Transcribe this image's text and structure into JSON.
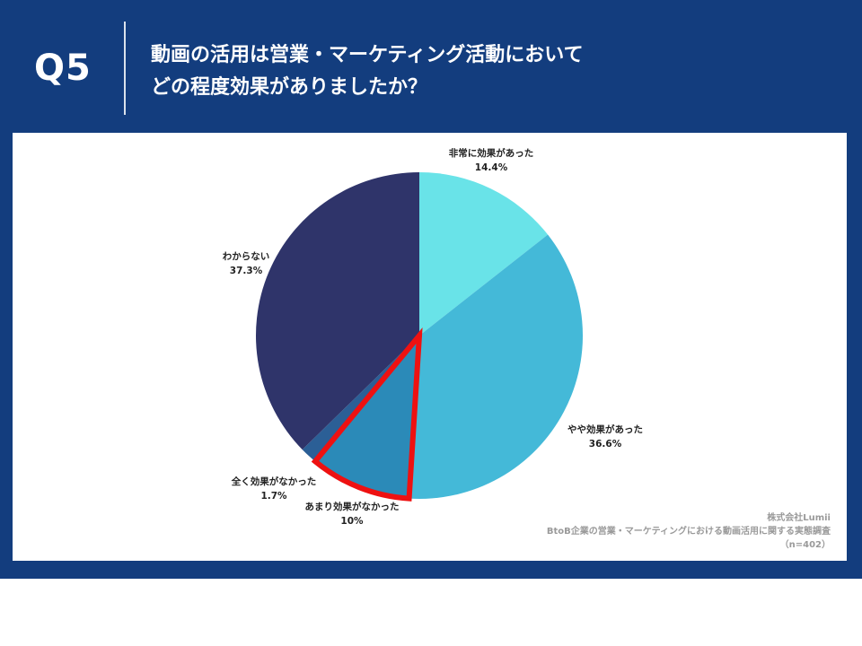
{
  "header": {
    "question_number": "Q5",
    "title_line1": "動画の活用は営業・マーケティング活動において",
    "title_line2": "どの程度効果がありましたか？"
  },
  "credit": {
    "company": "株式会社Lumii",
    "survey": "BtoB企業の営業・マーケティングにおける動画活用に関する実態調査",
    "sample": "（n=402）"
  },
  "colors": {
    "banner": "#133d7e",
    "highlight": "#ee1111"
  },
  "chart_data": {
    "type": "pie",
    "start": "12 o'clock, clockwise",
    "legend": "none (labels beside slices)",
    "slices": [
      {
        "label": "非常に効果があった",
        "value": 14.4,
        "value_text": "14.4%",
        "color": "#69e3e8"
      },
      {
        "label": "やや効果があった",
        "value": 36.6,
        "value_text": "36.6%",
        "color": "#44b9d8"
      },
      {
        "label": "あまり効果がなかった",
        "value": 10,
        "value_text": "10%",
        "color": "#2b8ab8",
        "highlighted": true
      },
      {
        "label": "全く効果がなかった",
        "value": 1.7,
        "value_text": "1.7%",
        "color": "#2b5f96"
      },
      {
        "label": "わからない",
        "value": 37.3,
        "value_text": "37.3%",
        "color": "#2f346a"
      }
    ]
  }
}
